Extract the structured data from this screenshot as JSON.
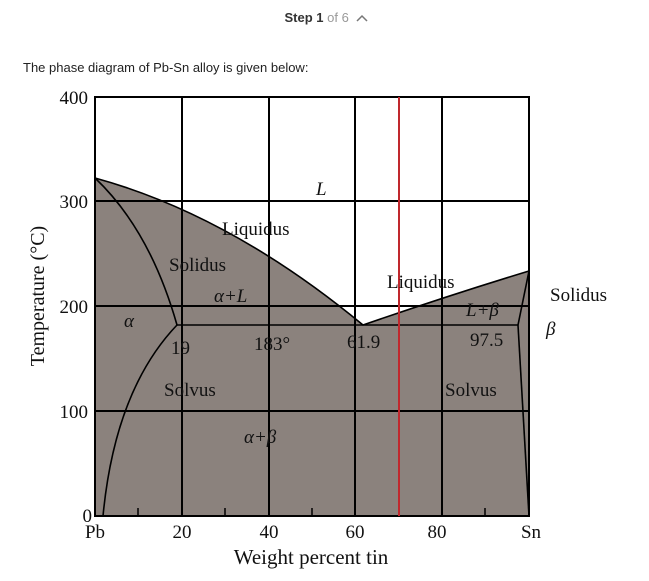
{
  "header": {
    "step": "Step 1",
    "of": "of 6"
  },
  "intro": "The phase diagram of Pb-Sn alloy is given below:",
  "diagram": {
    "y_label": "Temperature (°C)",
    "x_label": "Weight percent tin",
    "y_ticks": [
      400,
      300,
      200,
      100,
      0
    ],
    "x_ticks": [
      "Pb",
      20,
      40,
      60,
      80,
      "Sn"
    ],
    "labels": [
      "L",
      "Liquidus",
      "Solidus",
      "α+L",
      "α",
      "Liquidus",
      "L+β",
      "19",
      "183°",
      "61.9",
      "97.5",
      "Solvus",
      "Solvus",
      "α+β",
      "Solidus",
      "β"
    ]
  }
}
